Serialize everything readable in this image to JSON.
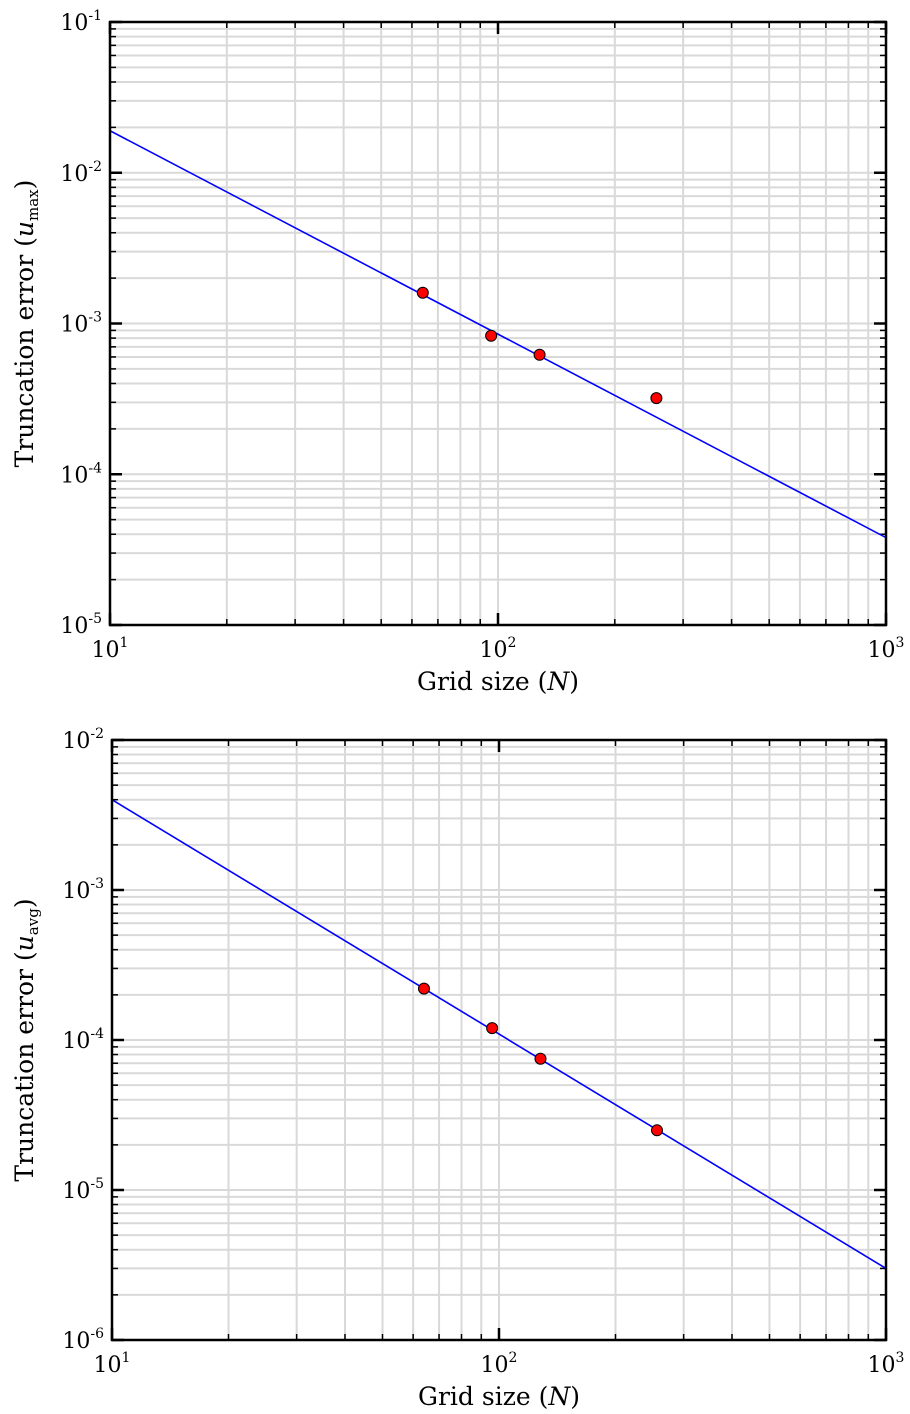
{
  "chart_data": [
    {
      "type": "scatter",
      "xscale": "log",
      "yscale": "log",
      "xlim": [
        10,
        1000
      ],
      "ylim": [
        1e-05,
        0.1
      ],
      "grid": true,
      "xlabel_parts": [
        "Grid size (",
        "N",
        ")"
      ],
      "ylabel_parts": [
        "Truncation error (",
        "u",
        "max",
        ")"
      ],
      "x_ticks": [
        {
          "base": "10",
          "exp": "1"
        },
        {
          "base": "10",
          "exp": "2"
        },
        {
          "base": "10",
          "exp": "3"
        }
      ],
      "y_ticks": [
        {
          "base": "10",
          "exp": "-5"
        },
        {
          "base": "10",
          "exp": "-4"
        },
        {
          "base": "10",
          "exp": "-3"
        },
        {
          "base": "10",
          "exp": "-2"
        },
        {
          "base": "10",
          "exp": "-1"
        }
      ],
      "points": {
        "x": [
          64,
          96,
          128,
          256
        ],
        "y": [
          0.0016,
          0.00083,
          0.00062,
          0.00032
        ]
      },
      "fit_line": {
        "x": [
          10,
          1000
        ],
        "y": [
          0.019,
          3.8e-05
        ]
      },
      "colors": {
        "points": "#ff0000",
        "line": "#0000ff",
        "grid": "#d9d9d9"
      }
    },
    {
      "type": "scatter",
      "xscale": "log",
      "yscale": "log",
      "xlim": [
        10,
        1000
      ],
      "ylim": [
        1e-06,
        0.01
      ],
      "grid": true,
      "xlabel_parts": [
        "Grid size (",
        "N",
        ")"
      ],
      "ylabel_parts": [
        "Truncation error (",
        "u",
        "avg",
        ")"
      ],
      "x_ticks": [
        {
          "base": "10",
          "exp": "1"
        },
        {
          "base": "10",
          "exp": "2"
        },
        {
          "base": "10",
          "exp": "3"
        }
      ],
      "y_ticks": [
        {
          "base": "10",
          "exp": "-6"
        },
        {
          "base": "10",
          "exp": "-5"
        },
        {
          "base": "10",
          "exp": "-4"
        },
        {
          "base": "10",
          "exp": "-3"
        },
        {
          "base": "10",
          "exp": "-2"
        }
      ],
      "points": {
        "x": [
          64,
          96,
          128,
          256
        ],
        "y": [
          0.00022,
          0.00012,
          7.5e-05,
          2.5e-05
        ]
      },
      "fit_line": {
        "x": [
          10,
          1000
        ],
        "y": [
          0.004,
          3e-06
        ]
      },
      "colors": {
        "points": "#ff0000",
        "line": "#0000ff",
        "grid": "#d9d9d9"
      }
    }
  ]
}
